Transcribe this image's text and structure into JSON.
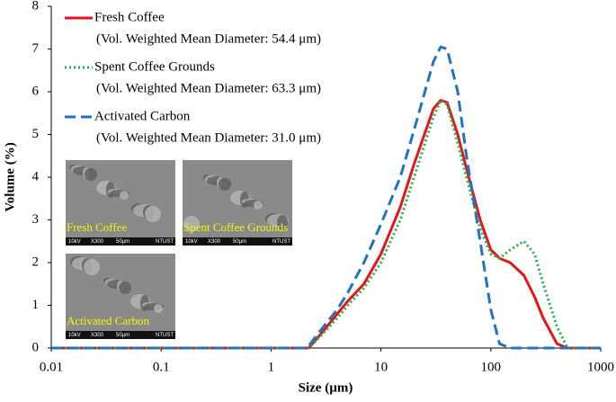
{
  "chart_data": {
    "type": "line",
    "xlabel": "Size (µm)",
    "ylabel": "Volume (%)",
    "log_x": true,
    "xlim": [
      0.01,
      1000
    ],
    "xticks": [
      0.01,
      0.1,
      1,
      10,
      100,
      1000
    ],
    "ylim": [
      0,
      8
    ],
    "yticks": [
      0,
      1,
      2,
      3,
      4,
      5,
      6,
      7,
      8
    ],
    "x": [
      0.01,
      2,
      2.2,
      3,
      4,
      5,
      7,
      10,
      15,
      20,
      30,
      35,
      40,
      50,
      60,
      80,
      100,
      120,
      150,
      200,
      250,
      300,
      400,
      500,
      1000
    ],
    "series": [
      {
        "name": "Fresh Coffee",
        "description": "(Vol. Weighted Mean Diameter: 54.4 μm)",
        "color": "#e8141b",
        "dash": "solid",
        "values": [
          0,
          0,
          0,
          0.4,
          0.8,
          1.1,
          1.5,
          2.2,
          3.3,
          4.3,
          5.6,
          5.8,
          5.75,
          5.0,
          4.2,
          3.0,
          2.3,
          2.1,
          2.0,
          1.7,
          1.2,
          0.7,
          0.1,
          0,
          0
        ]
      },
      {
        "name": "Spent Coffee Grounds",
        "description": "(Vol. Weighted Mean Diameter: 63.3 μm)",
        "color": "#1fb24a",
        "dash": "dotted",
        "values": [
          0,
          0,
          0,
          0.35,
          0.7,
          1.0,
          1.4,
          2.0,
          3.0,
          4.0,
          5.4,
          5.8,
          5.7,
          4.8,
          4.0,
          2.8,
          2.2,
          2.1,
          2.3,
          2.5,
          2.2,
          1.5,
          0.5,
          0,
          0
        ]
      },
      {
        "name": "Activated Carbon",
        "description": "(Vol. Weighted Mean Diameter: 31.0 μm)",
        "color": "#1f73c4",
        "dash": "dashed",
        "values": [
          0,
          0,
          0.05,
          0.5,
          0.9,
          1.3,
          2.0,
          2.9,
          4.0,
          5.1,
          6.7,
          7.05,
          7.0,
          6.0,
          4.5,
          2.5,
          0.9,
          0.1,
          0,
          0,
          0,
          0,
          0,
          0,
          0
        ]
      }
    ],
    "insets": [
      {
        "label": "Fresh Coffee",
        "info": [
          "10kV",
          "X300",
          "50μm",
          "NTUST"
        ]
      },
      {
        "label": "Spent Coffee Grounds",
        "info": [
          "10kV",
          "X300",
          "50μm",
          "NTUST"
        ]
      },
      {
        "label": "Activated Carbon",
        "info": [
          "10kV",
          "X300",
          "50μm",
          "NTUST"
        ]
      }
    ]
  }
}
